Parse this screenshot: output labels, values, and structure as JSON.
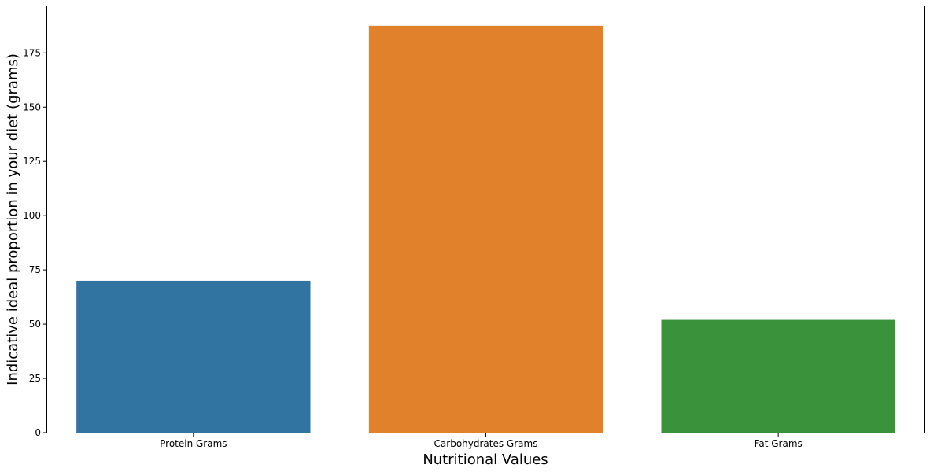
{
  "chart_data": {
    "type": "bar",
    "categories": [
      "Protein Grams",
      "Carbohydrates Grams",
      "Fat Grams"
    ],
    "values": [
      70,
      187.5,
      52
    ],
    "colors": [
      "#3274a1",
      "#e1812c",
      "#3a923a"
    ],
    "title": "",
    "xlabel": "Nutritional Values",
    "ylabel": "Indicative ideal proportion in your diet (grams)",
    "ylim": [
      0,
      196.5
    ],
    "yticks": [
      0,
      25,
      50,
      75,
      100,
      125,
      150,
      175
    ],
    "grid": false,
    "legend": "none"
  }
}
